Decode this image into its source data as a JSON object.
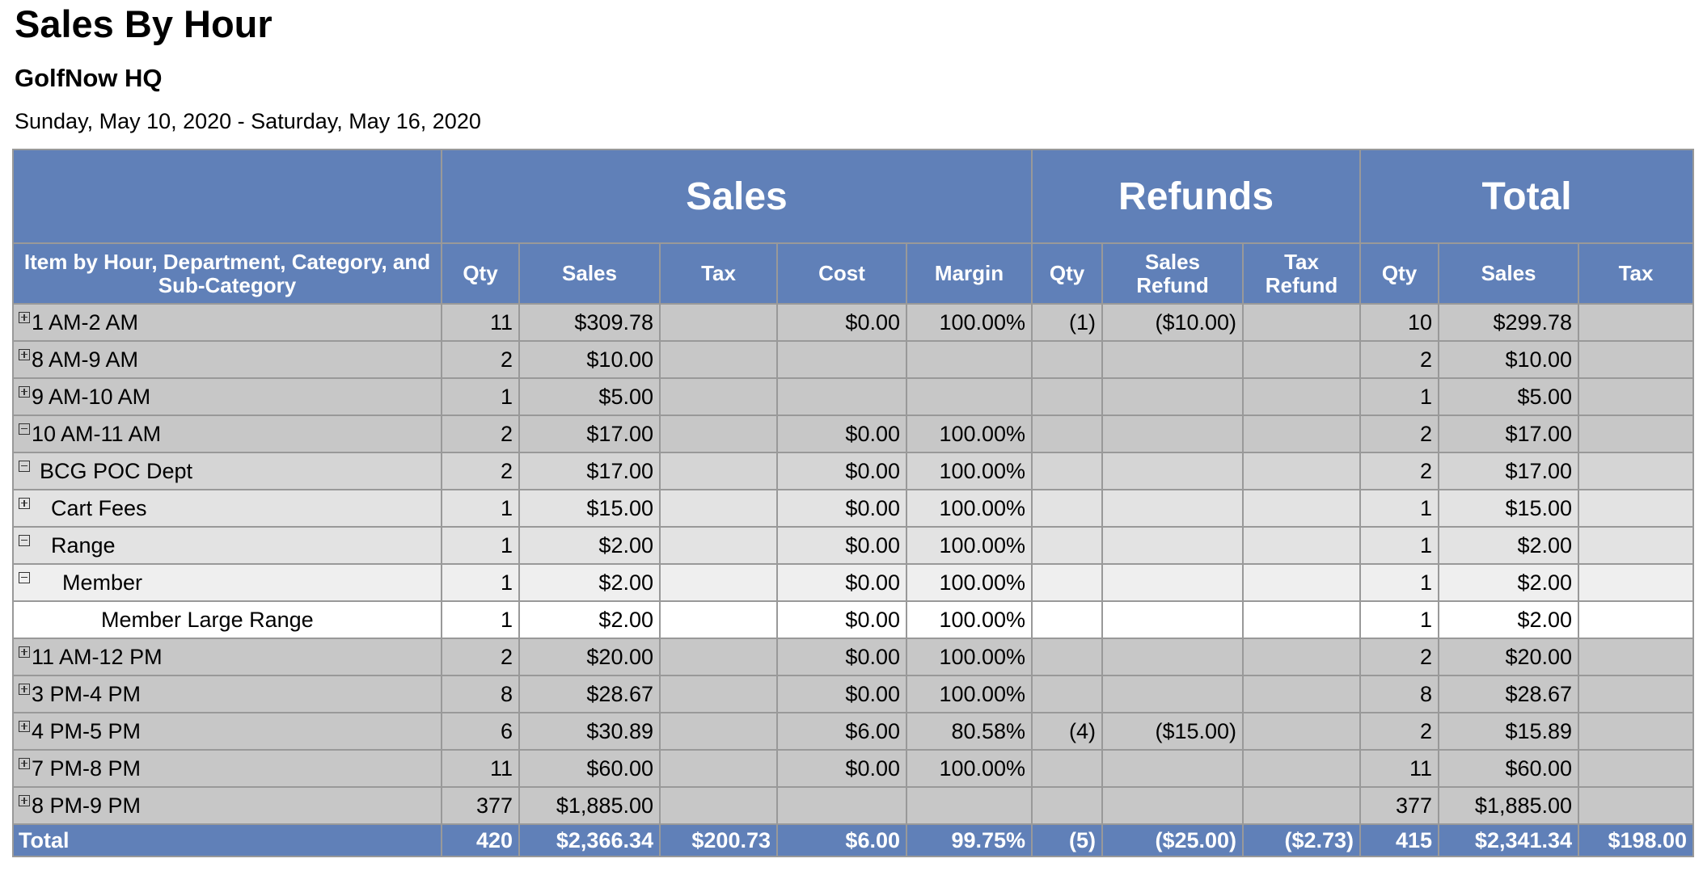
{
  "report": {
    "title": "Sales By Hour",
    "subtitle": "GolfNow HQ",
    "date_range": "Sunday, May 10, 2020 - Saturday, May 16, 2020"
  },
  "table": {
    "groups": [
      "",
      "Sales",
      "Refunds",
      "Total"
    ],
    "columns": {
      "item": "Item by Hour, Department, Category, and Sub-Category",
      "sales_qty": "Qty",
      "sales_sales": "Sales",
      "sales_tax": "Tax",
      "sales_cost": "Cost",
      "sales_margin": "Margin",
      "refunds_qty": "Qty",
      "refunds_sales": "Sales Refund",
      "refunds_tax": "Tax Refund",
      "total_qty": "Qty",
      "total_sales": "Sales",
      "total_tax": "Tax"
    },
    "rows": [
      {
        "label": "1 AM-2 AM",
        "level": 0,
        "toggle": "plus",
        "cells": [
          "11",
          "$309.78",
          "",
          "$0.00",
          "100.00%",
          "(1)",
          "($10.00)",
          "",
          "10",
          "$299.78",
          ""
        ]
      },
      {
        "label": "8 AM-9 AM",
        "level": 0,
        "toggle": "plus",
        "cells": [
          "2",
          "$10.00",
          "",
          "",
          "",
          "",
          "",
          "",
          "2",
          "$10.00",
          ""
        ]
      },
      {
        "label": "9 AM-10 AM",
        "level": 0,
        "toggle": "plus",
        "cells": [
          "1",
          "$5.00",
          "",
          "",
          "",
          "",
          "",
          "",
          "1",
          "$5.00",
          ""
        ]
      },
      {
        "label": "10 AM-11 AM",
        "level": 0,
        "toggle": "minus",
        "cells": [
          "2",
          "$17.00",
          "",
          "$0.00",
          "100.00%",
          "",
          "",
          "",
          "2",
          "$17.00",
          ""
        ]
      },
      {
        "label": "BCG POC Dept",
        "level": 1,
        "toggle": "minus",
        "cells": [
          "2",
          "$17.00",
          "",
          "$0.00",
          "100.00%",
          "",
          "",
          "",
          "2",
          "$17.00",
          ""
        ]
      },
      {
        "label": "Cart Fees",
        "level": 2,
        "toggle": "plus",
        "cells": [
          "1",
          "$15.00",
          "",
          "$0.00",
          "100.00%",
          "",
          "",
          "",
          "1",
          "$15.00",
          ""
        ]
      },
      {
        "label": "Range",
        "level": 2,
        "toggle": "minus",
        "cells": [
          "1",
          "$2.00",
          "",
          "$0.00",
          "100.00%",
          "",
          "",
          "",
          "1",
          "$2.00",
          ""
        ]
      },
      {
        "label": "Member",
        "level": 3,
        "toggle": "minus",
        "cells": [
          "1",
          "$2.00",
          "",
          "$0.00",
          "100.00%",
          "",
          "",
          "",
          "1",
          "$2.00",
          ""
        ]
      },
      {
        "label": "Member Large Range",
        "level": 4,
        "toggle": "",
        "cells": [
          "1",
          "$2.00",
          "",
          "$0.00",
          "100.00%",
          "",
          "",
          "",
          "1",
          "$2.00",
          ""
        ]
      },
      {
        "label": "11 AM-12 PM",
        "level": 0,
        "toggle": "plus",
        "cells": [
          "2",
          "$20.00",
          "",
          "$0.00",
          "100.00%",
          "",
          "",
          "",
          "2",
          "$20.00",
          ""
        ]
      },
      {
        "label": "3 PM-4 PM",
        "level": 0,
        "toggle": "plus",
        "cells": [
          "8",
          "$28.67",
          "",
          "$0.00",
          "100.00%",
          "",
          "",
          "",
          "8",
          "$28.67",
          ""
        ]
      },
      {
        "label": "4 PM-5 PM",
        "level": 0,
        "toggle": "plus",
        "cells": [
          "6",
          "$30.89",
          "",
          "$6.00",
          "80.58%",
          "(4)",
          "($15.00)",
          "",
          "2",
          "$15.89",
          ""
        ]
      },
      {
        "label": "7 PM-8 PM",
        "level": 0,
        "toggle": "plus",
        "cells": [
          "11",
          "$60.00",
          "",
          "$0.00",
          "100.00%",
          "",
          "",
          "",
          "11",
          "$60.00",
          ""
        ]
      },
      {
        "label": "8 PM-9 PM",
        "level": 0,
        "toggle": "plus",
        "cells": [
          "377",
          "$1,885.00",
          "",
          "",
          "",
          "",
          "",
          "",
          "377",
          "$1,885.00",
          ""
        ]
      }
    ],
    "total": {
      "label": "Total",
      "cells": [
        "420",
        "$2,366.34",
        "$200.73",
        "$6.00",
        "99.75%",
        "(5)",
        "($25.00)",
        "($2.73)",
        "415",
        "$2,341.34",
        "$198.00"
      ]
    }
  }
}
